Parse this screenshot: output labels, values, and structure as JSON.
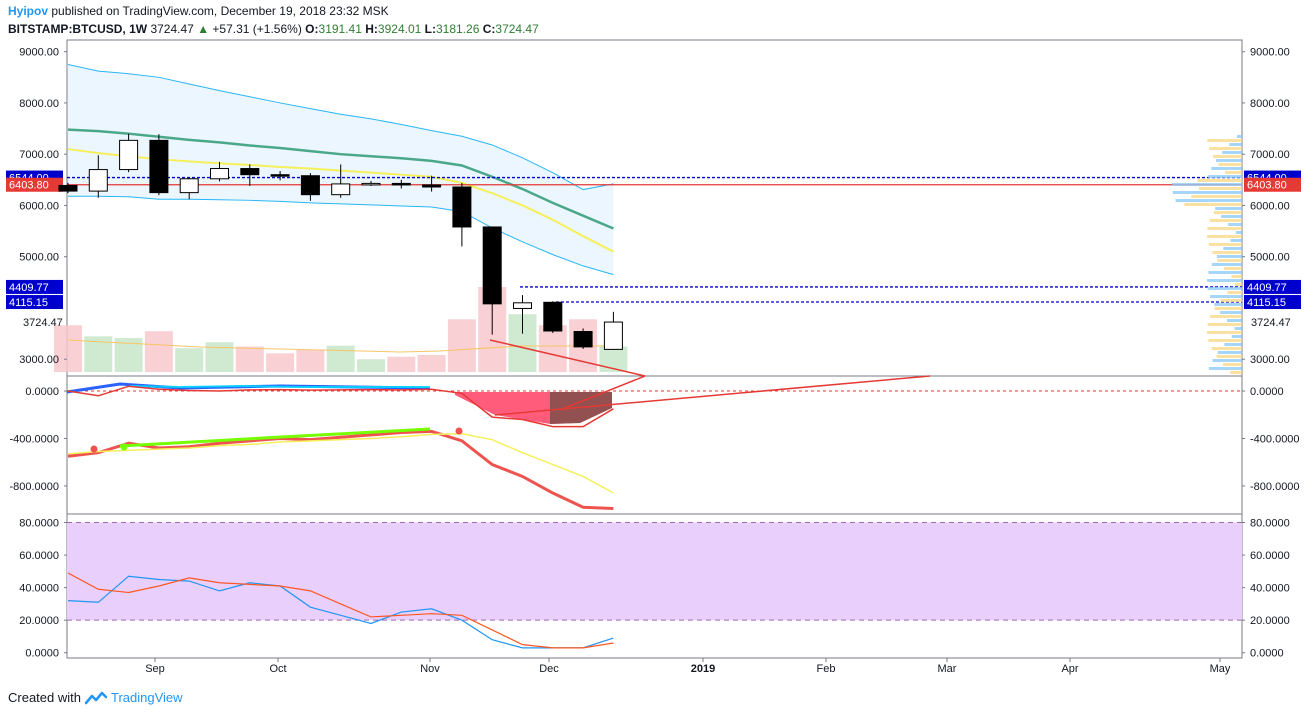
{
  "header": {
    "author": "Hyipov",
    "published": "published on TradingView.com, December 19, 2018 23:32 MSK",
    "symbol": "BITSTAMP:BTCUSD, 1W",
    "last": "3724.47",
    "change": "+57.31 (+1.56%)",
    "o_label": "O:",
    "o": "3191.41",
    "h_label": "H:",
    "h": "3924.01",
    "l_label": "L:",
    "l": "3181.26",
    "c_label": "C:",
    "c": "3724.47"
  },
  "footer": {
    "created": "Created with",
    "brand": "TradingView"
  },
  "colors": {
    "up": "#26a69a",
    "down": "#000000",
    "price_line": "#e53935",
    "level": "#0000cc",
    "pane3_bg": "#e9cffc"
  },
  "chart_data": [
    {
      "type": "candlestick",
      "pane": "price",
      "ylim": [
        2750,
        9150
      ],
      "ticks": [
        "9000.00",
        "8000.00",
        "7000.00",
        "6000.00",
        "5000.00",
        "3000.00"
      ],
      "x_labels": [
        "Sep",
        "Oct",
        "Nov",
        "Dec",
        "2019",
        "Feb",
        "Mar",
        "Apr",
        "May"
      ],
      "ohlc": [
        [
          6390,
          6440,
          6240,
          6280
        ],
        [
          6280,
          6980,
          6150,
          6700
        ],
        [
          6700,
          7400,
          6650,
          7270
        ],
        [
          7270,
          7390,
          6200,
          6250
        ],
        [
          6250,
          6550,
          6120,
          6520
        ],
        [
          6520,
          6850,
          6470,
          6720
        ],
        [
          6720,
          6800,
          6380,
          6600
        ],
        [
          6600,
          6670,
          6490,
          6580
        ],
        [
          6580,
          6630,
          6090,
          6210
        ],
        [
          6210,
          6800,
          6150,
          6420
        ],
        [
          6420,
          6480,
          6380,
          6430
        ],
        [
          6430,
          6500,
          6330,
          6400
        ],
        [
          6400,
          6580,
          6270,
          6360
        ],
        [
          6360,
          6440,
          5200,
          5580
        ],
        [
          5580,
          5580,
          3480,
          4080
        ],
        [
          3990,
          4250,
          3500,
          4100
        ],
        [
          4110,
          4130,
          3510,
          3550
        ],
        [
          3540,
          3600,
          3200,
          3240
        ],
        [
          3191.41,
          3924.01,
          3181.26,
          3724.47
        ]
      ],
      "volume": [
        0.55,
        0.42,
        0.4,
        0.48,
        0.28,
        0.35,
        0.3,
        0.22,
        0.26,
        0.31,
        0.15,
        0.18,
        0.2,
        0.62,
        1.0,
        0.68,
        0.55,
        0.62,
        0.3
      ],
      "lines": {
        "ema_teal": [
          7480,
          7450,
          7400,
          7340,
          7280,
          7230,
          7170,
          7120,
          7060,
          7000,
          6960,
          6920,
          6870,
          6780,
          6560,
          6320,
          6050,
          5800,
          5550
        ],
        "ma_yellow": [
          7100,
          7020,
          6960,
          6900,
          6860,
          6820,
          6790,
          6750,
          6720,
          6680,
          6640,
          6600,
          6560,
          6440,
          6240,
          6000,
          5720,
          5400,
          5100
        ],
        "band_upper": [
          8750,
          8620,
          8570,
          8500,
          8370,
          8240,
          8120,
          8000,
          7890,
          7780,
          7690,
          7580,
          7460,
          7350,
          7180,
          6930,
          6640,
          6310,
          6420
        ],
        "band_lower": [
          6180,
          6180,
          6170,
          6120,
          6120,
          6110,
          6100,
          6080,
          6050,
          6030,
          6010,
          5990,
          5970,
          5880,
          5560,
          5290,
          5040,
          4820,
          4650
        ]
      },
      "levels": [
        {
          "label": "6544.00",
          "value": 6544.0,
          "color": "#0000cc"
        },
        {
          "label": "6403.80",
          "value": 6403.8,
          "color": "#e53935"
        },
        {
          "label": "4409.77",
          "value": 4409.77,
          "color": "#0000cc"
        },
        {
          "label": "4115.15",
          "value": 4115.15,
          "color": "#0000cc"
        }
      ],
      "last_label": "3724.47",
      "last_value": 3724.47
    },
    {
      "type": "line",
      "pane": "oscillator",
      "ylim": [
        -1020,
        110
      ],
      "ticks": [
        "0.0000",
        "-400.0000",
        "-800.0000"
      ],
      "zero_line": 0,
      "series": [
        {
          "values": [
            -550,
            -520,
            -440,
            -480,
            -470,
            -440,
            -420,
            -400,
            -410,
            -390,
            -370,
            -350,
            -340,
            -420,
            -620,
            -720,
            -860,
            -980,
            -990
          ]
        },
        {
          "values": [
            -530,
            -510,
            -500,
            -490,
            -480,
            -460,
            -450,
            -430,
            -420,
            -410,
            -400,
            -385,
            -365,
            -360,
            -410,
            -520,
            -620,
            -720,
            -860
          ]
        },
        {
          "values": [
            0,
            -40,
            40,
            15,
            5,
            0,
            10,
            12,
            8,
            10,
            12,
            10,
            15,
            -20,
            -220,
            -240,
            -300,
            -300,
            -150
          ]
        }
      ]
    },
    {
      "type": "line",
      "pane": "stochastic",
      "ylim": [
        -2,
        84
      ],
      "ticks": [
        "80.0000",
        "60.0000",
        "40.0000",
        "20.0000",
        "0.0000"
      ],
      "bands": [
        80,
        20
      ],
      "series": [
        {
          "values": [
            32,
            31,
            47,
            45,
            44,
            38,
            43,
            41,
            28,
            23,
            18,
            25,
            27,
            20,
            8,
            3,
            3,
            3,
            9
          ]
        },
        {
          "values": [
            49,
            39,
            37,
            41,
            46,
            43,
            42,
            41,
            38,
            30,
            22,
            23,
            24,
            23,
            14,
            5,
            3,
            3,
            6
          ]
        }
      ]
    }
  ]
}
